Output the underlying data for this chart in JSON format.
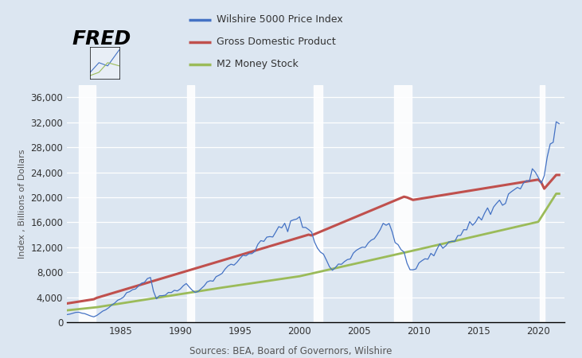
{
  "ylabel": "Index , Billions of Dollars",
  "background_color": "#dce6f1",
  "plot_bg_color": "#dce6f1",
  "wilshire_color": "#4472c4",
  "gdp_color": "#c0504d",
  "m2_color": "#9bbb59",
  "ylim": [
    0,
    38000
  ],
  "yticks": [
    0,
    4000,
    8000,
    12000,
    16000,
    20000,
    24000,
    28000,
    32000,
    36000
  ],
  "xmin": 1980.5,
  "xmax": 2022.2,
  "xticks": [
    1985,
    1990,
    1995,
    2000,
    2005,
    2010,
    2015,
    2020
  ],
  "recession_bands": [
    [
      1981.5,
      1982.9
    ],
    [
      1990.6,
      1991.2
    ],
    [
      2001.2,
      2001.9
    ],
    [
      2007.9,
      2009.4
    ],
    [
      2020.1,
      2020.5
    ]
  ],
  "legend_labels": [
    "Wilshire 5000 Price Index",
    "Gross Domestic Product",
    "M2 Money Stock"
  ],
  "source_text": "Sources: BEA, Board of Governors, Wilshire"
}
